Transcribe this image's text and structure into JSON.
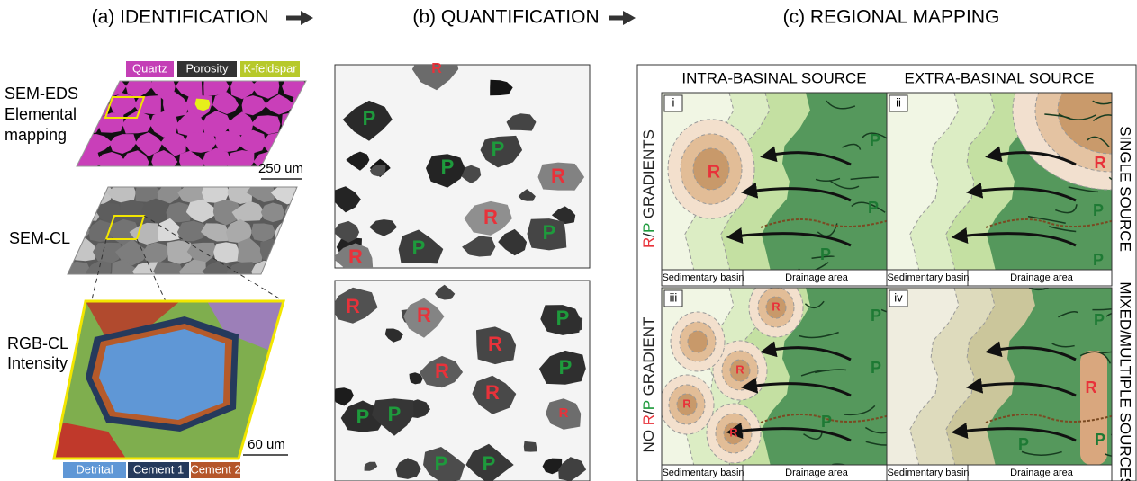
{
  "titles": {
    "a": "(a) IDENTIFICATION",
    "b": "(b) QUANTIFICATION",
    "c": "(c) REGIONAL MAPPING"
  },
  "identification": {
    "eds_legend": [
      "Quartz",
      "Porosity",
      "K-feldspar"
    ],
    "eds_label": [
      "SEM-EDS",
      "Elemental",
      "mapping"
    ],
    "eds_scale": "250 um",
    "cl_label": "SEM-CL",
    "rgb_label": [
      "RGB-CL",
      "Intensity"
    ],
    "rgb_scale": "60 um",
    "rgb_legend": [
      "Detrital",
      "Cement 1",
      "Cement 2"
    ]
  },
  "quantification": {
    "top_grains": [
      "R",
      "P",
      "P",
      "P",
      "R",
      "R",
      "P",
      "P",
      "R"
    ],
    "bottom_grains": [
      "R",
      "R",
      "P",
      "R",
      "R",
      "P",
      "P",
      "P",
      "R",
      "R",
      "P",
      "P"
    ]
  },
  "mapping": {
    "columns": [
      "INTRA-BASINAL SOURCE",
      "EXTRA-BASINAL SOURCE"
    ],
    "rows": [
      {
        "parts": [
          "R",
          "/",
          "P",
          " GRADIENTS"
        ]
      },
      {
        "parts": [
          "NO ",
          "R",
          "/",
          "P",
          " GRADIENT"
        ]
      }
    ],
    "right_labels": [
      "SINGLE SOURCE",
      "MIXED/MULTIPLE SOURCES"
    ],
    "cells": [
      {
        "id": "i",
        "basin": "Sedimentary basin",
        "drainage": "Drainage area",
        "grains": [
          "R",
          "P",
          "P",
          "P"
        ]
      },
      {
        "id": "ii",
        "basin": "Sedimentary basin",
        "drainage": "Drainage area",
        "grains": [
          "R",
          "P",
          "P"
        ]
      },
      {
        "id": "iii",
        "basin": "Sedimentary basin",
        "drainage": "Drainage area",
        "grains": [
          "R",
          "R",
          "R",
          "R",
          "P",
          "P",
          "P"
        ]
      },
      {
        "id": "iv",
        "basin": "Sedimentary basin",
        "drainage": "Drainage area",
        "grains": [
          "P",
          "R",
          "P",
          "P"
        ]
      }
    ]
  }
}
